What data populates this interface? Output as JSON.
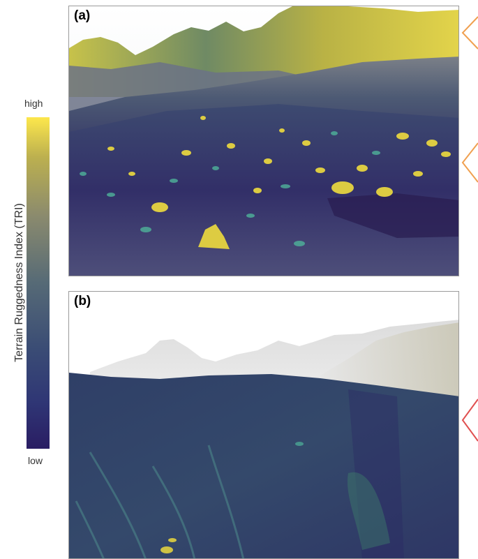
{
  "colorbar": {
    "title": "Terrain Ruggedness Index (TRI)",
    "high_label": "high",
    "low_label": "low",
    "colors": [
      "#fde74c",
      "#8a8a6e",
      "#566a76",
      "#2f3675",
      "#2a1d63"
    ]
  },
  "panels": [
    {
      "label": "(a)"
    },
    {
      "label": "(b)"
    }
  ],
  "marker_colors": {
    "orange": "#f0a050",
    "red": "#e05050"
  }
}
